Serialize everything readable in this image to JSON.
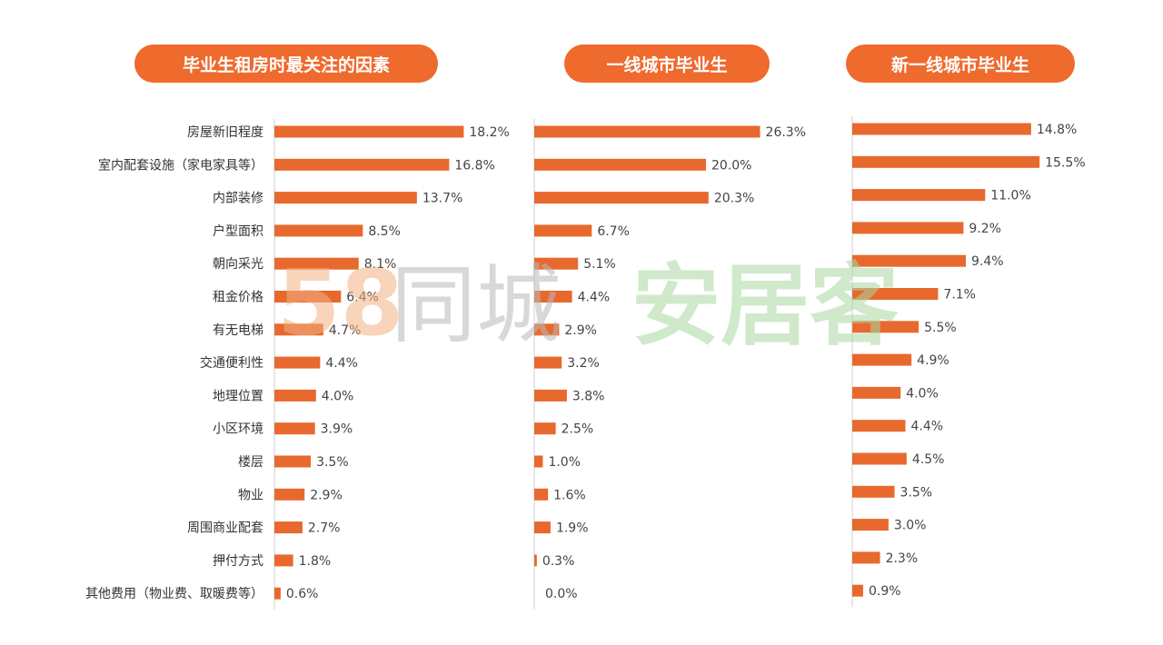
{
  "colors": {
    "bar": "#e8692e",
    "header": "#ee6a2d",
    "axis": "#cfcfcf"
  },
  "watermark": {
    "brand_a": "58",
    "brand_b": "同城",
    "brand_c": "安居客"
  },
  "chart_data": [
    {
      "type": "bar",
      "orientation": "horizontal",
      "title": "毕业生租房时最关注的因素",
      "categories": [
        "房屋新旧程度",
        "室内配套设施（家电家具等）",
        "内部装修",
        "户型面积",
        "朝向采光",
        "租金价格",
        "有无电梯",
        "交通便利性",
        "地理位置",
        "小区环境",
        "楼层",
        "物业",
        "周围商业配套",
        "押付方式",
        "其他费用（物业费、取暖费等）"
      ],
      "values": [
        18.2,
        16.8,
        13.7,
        8.5,
        8.1,
        6.4,
        4.7,
        4.4,
        4.0,
        3.9,
        3.5,
        2.9,
        2.7,
        1.8,
        0.6
      ],
      "labels": [
        "18.2%",
        "16.8%",
        "13.7%",
        "8.5%",
        "8.1%",
        "6.4%",
        "4.7%",
        "4.4%",
        "4.0%",
        "3.9%",
        "3.5%",
        "2.9%",
        "2.7%",
        "1.8%",
        "0.6%"
      ]
    },
    {
      "type": "bar",
      "orientation": "horizontal",
      "title": "一线城市毕业生",
      "values": [
        26.3,
        20.0,
        20.3,
        6.7,
        5.1,
        4.4,
        2.9,
        3.2,
        3.8,
        2.5,
        1.0,
        1.6,
        1.9,
        0.3,
        0.0
      ],
      "labels": [
        "26.3%",
        "20.0%",
        "20.3%",
        "6.7%",
        "5.1%",
        "4.4%",
        "2.9%",
        "3.2%",
        "3.8%",
        "2.5%",
        "1.0%",
        "1.6%",
        "1.9%",
        "0.3%",
        "0.0%"
      ]
    },
    {
      "type": "bar",
      "orientation": "horizontal",
      "title": "新一线城市毕业生",
      "values": [
        14.8,
        15.5,
        11.0,
        9.2,
        9.4,
        7.1,
        5.5,
        4.9,
        4.0,
        4.4,
        4.5,
        3.5,
        3.0,
        2.3,
        0.9
      ],
      "labels": [
        "14.8%",
        "15.5%",
        "11.0%",
        "9.2%",
        "9.4%",
        "7.1%",
        "5.5%",
        "4.9%",
        "4.0%",
        "4.4%",
        "4.5%",
        "3.5%",
        "3.0%",
        "2.3%",
        "0.9%"
      ]
    }
  ]
}
